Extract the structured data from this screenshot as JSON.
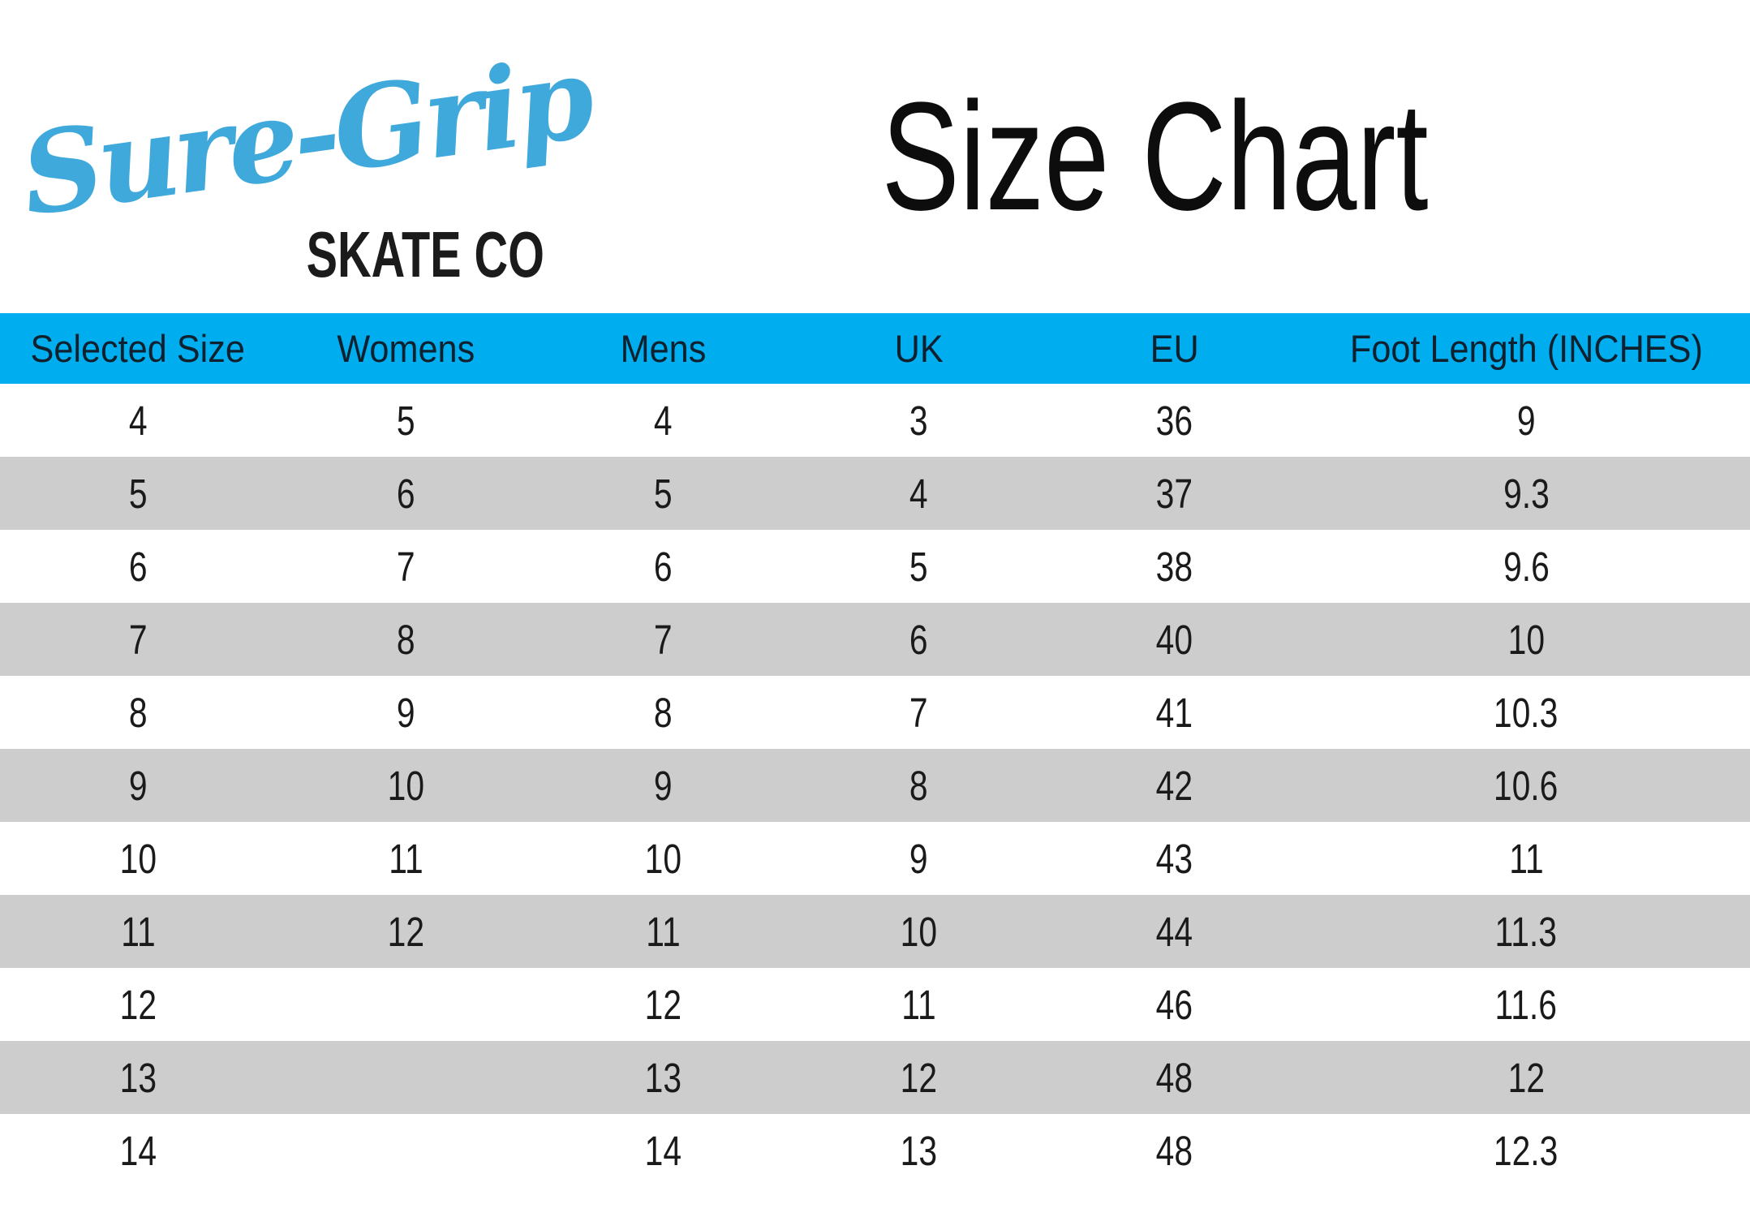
{
  "logo": {
    "script": "Sure-Grip",
    "subtext": "SKATE CO"
  },
  "header": {
    "title": "Size Chart"
  },
  "colors": {
    "header_bg": "#00AEEF",
    "row_alt_bg": "#CDCDCD",
    "logo_blue": "#3FA9DC",
    "header_text": "#0F212E",
    "body_text": "#1A1A1A"
  },
  "chart_data": {
    "type": "table",
    "title": "Size Chart",
    "columns": [
      "Selected Size",
      "Womens",
      "Mens",
      "UK",
      "EU",
      "Foot Length (INCHES)"
    ],
    "rows": [
      [
        "4",
        "5",
        "4",
        "3",
        "36",
        "9"
      ],
      [
        "5",
        "6",
        "5",
        "4",
        "37",
        "9.3"
      ],
      [
        "6",
        "7",
        "6",
        "5",
        "38",
        "9.6"
      ],
      [
        "7",
        "8",
        "7",
        "6",
        "40",
        "10"
      ],
      [
        "8",
        "9",
        "8",
        "7",
        "41",
        "10.3"
      ],
      [
        "9",
        "10",
        "9",
        "8",
        "42",
        "10.6"
      ],
      [
        "10",
        "11",
        "10",
        "9",
        "43",
        "11"
      ],
      [
        "11",
        "12",
        "11",
        "10",
        "44",
        "11.3"
      ],
      [
        "12",
        "",
        "12",
        "11",
        "46",
        "11.6"
      ],
      [
        "13",
        "",
        "13",
        "12",
        "48",
        "12"
      ],
      [
        "14",
        "",
        "14",
        "13",
        "48",
        "12.3"
      ]
    ]
  }
}
